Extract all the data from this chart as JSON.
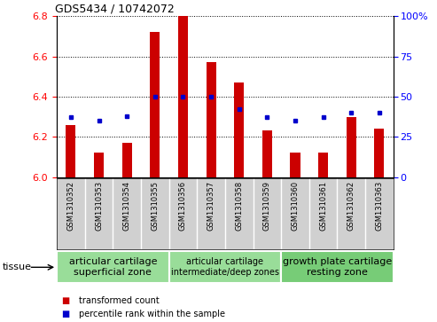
{
  "title": "GDS5434 / 10742072",
  "samples": [
    "GSM1310352",
    "GSM1310353",
    "GSM1310354",
    "GSM1310355",
    "GSM1310356",
    "GSM1310357",
    "GSM1310358",
    "GSM1310359",
    "GSM1310360",
    "GSM1310361",
    "GSM1310362",
    "GSM1310363"
  ],
  "transformed_count": [
    6.26,
    6.12,
    6.17,
    6.72,
    6.8,
    6.57,
    6.47,
    6.23,
    6.12,
    6.12,
    6.3,
    6.24
  ],
  "percentile_rank": [
    37,
    35,
    38,
    50,
    50,
    50,
    42,
    37,
    35,
    37,
    40,
    40
  ],
  "ylim_left": [
    6.0,
    6.8
  ],
  "ylim_right": [
    0,
    100
  ],
  "yticks_left": [
    6.0,
    6.2,
    6.4,
    6.6,
    6.8
  ],
  "yticks_right": [
    0,
    25,
    50,
    75,
    100
  ],
  "bar_color": "#cc0000",
  "dot_color": "#0000cc",
  "sample_bg_color": "#d0d0d0",
  "tissue_groups": [
    {
      "label": "articular cartilage\nsuperficial zone",
      "start": 0,
      "end": 3,
      "color": "#99dd99",
      "fontsize": 8
    },
    {
      "label": "articular cartilage\nintermediate/deep zones",
      "start": 4,
      "end": 7,
      "color": "#99dd99",
      "fontsize": 7
    },
    {
      "label": "growth plate cartilage\nresting zone",
      "start": 8,
      "end": 11,
      "color": "#77cc77",
      "fontsize": 8
    }
  ],
  "legend_items": [
    {
      "color": "#cc0000",
      "label": "transformed count"
    },
    {
      "color": "#0000cc",
      "label": "percentile rank within the sample"
    }
  ],
  "bar_width": 0.35
}
